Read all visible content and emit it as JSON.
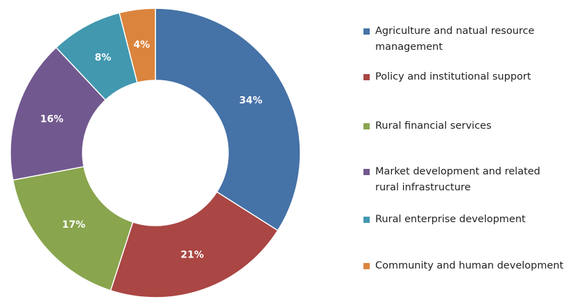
{
  "chart_data": {
    "type": "donut",
    "categories": [
      "Agriculture and natual resource management",
      "Policy and institutional support",
      "Rural financial services",
      "Market development and related rural infrastructure",
      "Rural enterprise development",
      "Community and human development"
    ],
    "values": [
      34,
      21,
      17,
      16,
      8,
      4
    ],
    "value_labels": [
      "34%",
      "21%",
      "17%",
      "16%",
      "8%",
      "4%"
    ],
    "colors": [
      "#4572A7",
      "#AA4643",
      "#89A54E",
      "#71588F",
      "#4198AF",
      "#DB843D"
    ],
    "legend": "right"
  }
}
